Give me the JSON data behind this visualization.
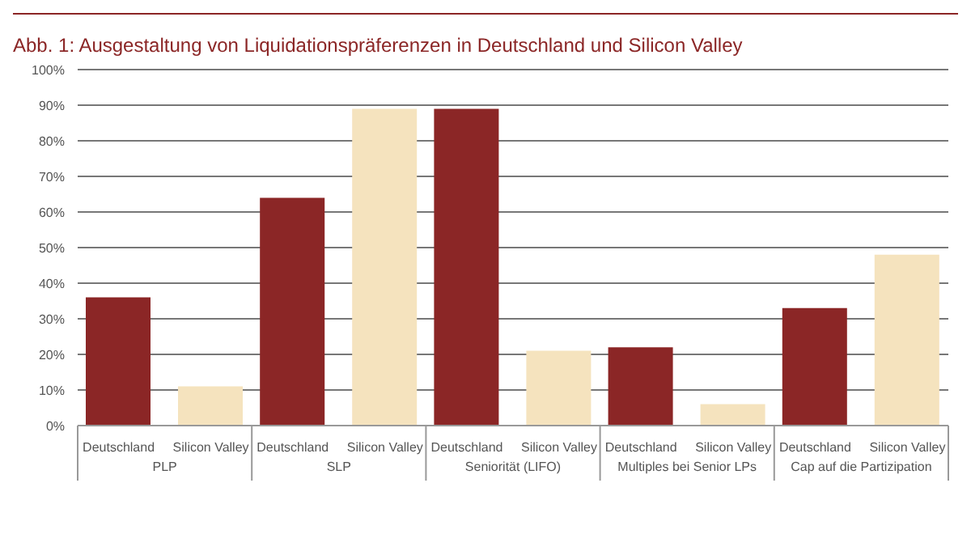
{
  "chart_data": {
    "type": "bar",
    "title": "Abb. 1: Ausgestaltung von Liquidationspräferenzen in Deutschland und Silicon Valley",
    "categories": [
      "PLP",
      "SLP",
      "Seniorität (LIFO)",
      "Multiples bei Senior LPs",
      "Cap auf die Partizipation"
    ],
    "series": [
      {
        "name": "Deutschland",
        "color": "#8b2626",
        "values": [
          36,
          64,
          89,
          22,
          33
        ]
      },
      {
        "name": "Silicon Valley",
        "color": "#f5e3be",
        "values": [
          11,
          89,
          21,
          6,
          48
        ]
      }
    ],
    "ylim": [
      0,
      100
    ],
    "yticks": [
      {
        "value": 0,
        "label": "0%"
      },
      {
        "value": 10,
        "label": "10%"
      },
      {
        "value": 20,
        "label": "20%"
      },
      {
        "value": 30,
        "label": "30%"
      },
      {
        "value": 40,
        "label": "40%"
      },
      {
        "value": 50,
        "label": "50%"
      },
      {
        "value": 60,
        "label": "60%"
      },
      {
        "value": 70,
        "label": "70%"
      },
      {
        "value": 80,
        "label": "80%"
      },
      {
        "value": 90,
        "label": "90%"
      },
      {
        "value": 100,
        "label": "100%"
      }
    ],
    "grid": "y",
    "legend": false
  }
}
